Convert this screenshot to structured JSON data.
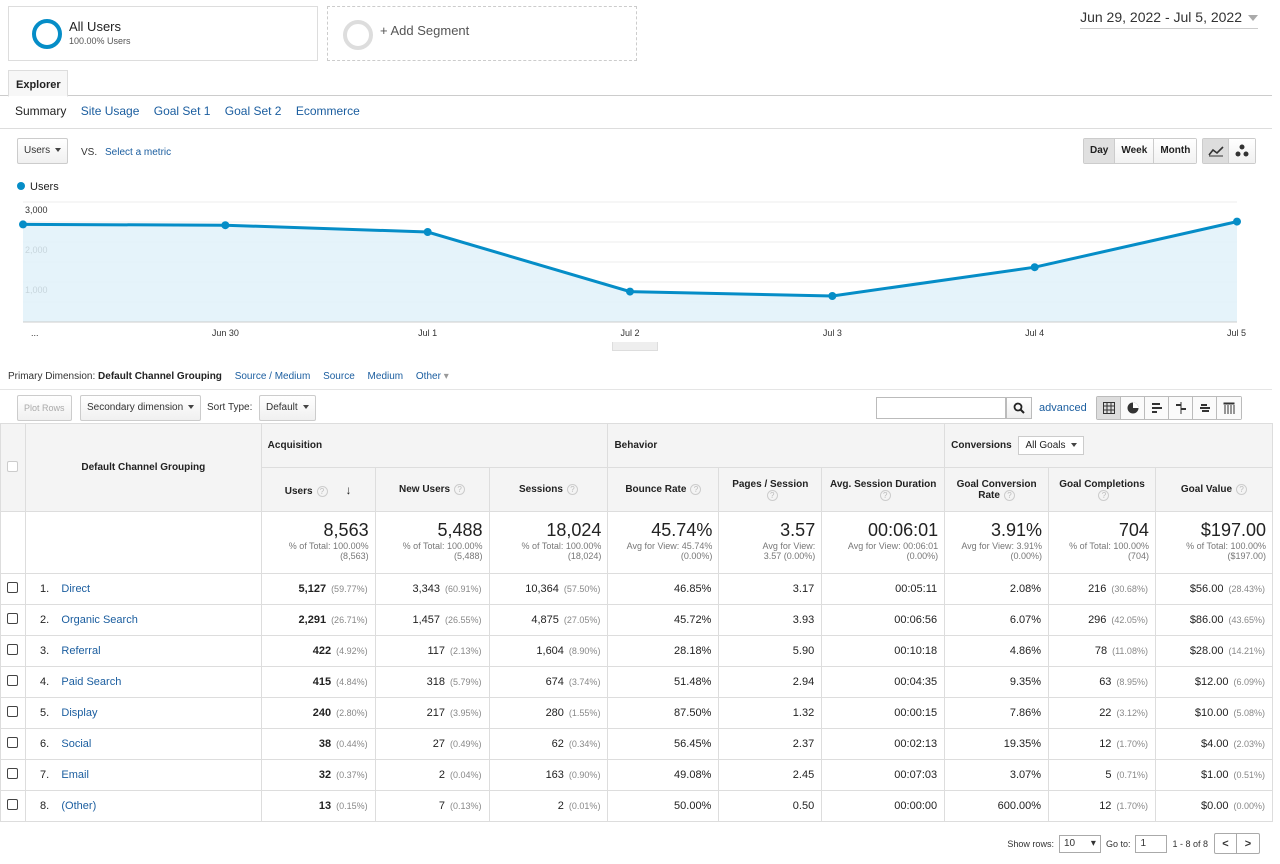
{
  "segments": {
    "primary": {
      "title": "All Users",
      "subtitle": "100.00% Users"
    },
    "add_label": "+ Add Segment"
  },
  "date_range": "Jun 29, 2022 - Jul 5, 2022",
  "tabs": {
    "explorer": "Explorer"
  },
  "subtabs": [
    "Summary",
    "Site Usage",
    "Goal Set 1",
    "Goal Set 2",
    "Ecommerce"
  ],
  "metric": {
    "selected": "Users",
    "vs": "VS.",
    "select_metric": "Select a metric"
  },
  "granularity": [
    "Day",
    "Week",
    "Month"
  ],
  "legend": "Users",
  "colors": {
    "accent": "#058dc7",
    "fill": "#e0f1f9",
    "link": "#1a5d9f"
  },
  "chart_data": {
    "type": "area",
    "series": [
      {
        "name": "Users",
        "values": [
          2440,
          2420,
          2250,
          760,
          650,
          1370,
          2510
        ]
      }
    ],
    "x": [
      "Jun 29",
      "Jun 30",
      "Jul 1",
      "Jul 2",
      "Jul 3",
      "Jul 4",
      "Jul 5"
    ],
    "x_tick_labels": [
      "...",
      "Jun 30",
      "Jul 1",
      "Jul 2",
      "Jul 3",
      "Jul 4",
      "Jul 5"
    ],
    "y_ticks": [
      "3,000",
      "2,000",
      "1,000"
    ],
    "ylim": [
      0,
      3000
    ],
    "grid": true
  },
  "primary_dimension": {
    "label": "Primary Dimension:",
    "selected": "Default Channel Grouping",
    "options": [
      "Source / Medium",
      "Source",
      "Medium",
      "Other"
    ]
  },
  "toolbar": {
    "plot_rows": "Plot Rows",
    "secondary_dimension": "Secondary dimension",
    "sort_type_label": "Sort Type:",
    "sort_type_value": "Default",
    "advanced": "advanced",
    "search_value": ""
  },
  "table": {
    "dimension_header": "Default Channel Grouping",
    "groups": {
      "acquisition": "Acquisition",
      "behavior": "Behavior",
      "conversions": "Conversions",
      "goals_select": "All Goals"
    },
    "columns": [
      "Users",
      "New Users",
      "Sessions",
      "Bounce Rate",
      "Pages / Session",
      "Avg. Session Duration",
      "Goal Conversion Rate",
      "Goal Completions",
      "Goal Value"
    ],
    "totals": [
      {
        "value": "8,563",
        "l1": "% of Total: 100.00%",
        "l2": "(8,563)"
      },
      {
        "value": "5,488",
        "l1": "% of Total: 100.00%",
        "l2": "(5,488)"
      },
      {
        "value": "18,024",
        "l1": "% of Total: 100.00%",
        "l2": "(18,024)"
      },
      {
        "value": "45.74%",
        "l1": "Avg for View: 45.74%",
        "l2": "(0.00%)"
      },
      {
        "value": "3.57",
        "l1": "Avg for View:",
        "l2": "3.57 (0.00%)"
      },
      {
        "value": "00:06:01",
        "l1": "Avg for View: 00:06:01",
        "l2": "(0.00%)"
      },
      {
        "value": "3.91%",
        "l1": "Avg for View: 3.91%",
        "l2": "(0.00%)"
      },
      {
        "value": "704",
        "l1": "% of Total: 100.00%",
        "l2": "(704)"
      },
      {
        "value": "$197.00",
        "l1": "% of Total: 100.00%",
        "l2": "($197.00)"
      }
    ],
    "rows": [
      {
        "idx": "1.",
        "name": "Direct",
        "users": "5,127",
        "users_pct": "(59.77%)",
        "new_users": "3,343",
        "new_users_pct": "(60.91%)",
        "sessions": "10,364",
        "sessions_pct": "(57.50%)",
        "bounce": "46.85%",
        "pps": "3.17",
        "dur": "00:05:11",
        "gcr": "2.08%",
        "gc": "216",
        "gc_pct": "(30.68%)",
        "gv": "$56.00",
        "gv_pct": "(28.43%)"
      },
      {
        "idx": "2.",
        "name": "Organic Search",
        "users": "2,291",
        "users_pct": "(26.71%)",
        "new_users": "1,457",
        "new_users_pct": "(26.55%)",
        "sessions": "4,875",
        "sessions_pct": "(27.05%)",
        "bounce": "45.72%",
        "pps": "3.93",
        "dur": "00:06:56",
        "gcr": "6.07%",
        "gc": "296",
        "gc_pct": "(42.05%)",
        "gv": "$86.00",
        "gv_pct": "(43.65%)"
      },
      {
        "idx": "3.",
        "name": "Referral",
        "users": "422",
        "users_pct": "(4.92%)",
        "new_users": "117",
        "new_users_pct": "(2.13%)",
        "sessions": "1,604",
        "sessions_pct": "(8.90%)",
        "bounce": "28.18%",
        "pps": "5.90",
        "dur": "00:10:18",
        "gcr": "4.86%",
        "gc": "78",
        "gc_pct": "(11.08%)",
        "gv": "$28.00",
        "gv_pct": "(14.21%)"
      },
      {
        "idx": "4.",
        "name": "Paid Search",
        "users": "415",
        "users_pct": "(4.84%)",
        "new_users": "318",
        "new_users_pct": "(5.79%)",
        "sessions": "674",
        "sessions_pct": "(3.74%)",
        "bounce": "51.48%",
        "pps": "2.94",
        "dur": "00:04:35",
        "gcr": "9.35%",
        "gc": "63",
        "gc_pct": "(8.95%)",
        "gv": "$12.00",
        "gv_pct": "(6.09%)"
      },
      {
        "idx": "5.",
        "name": "Display",
        "users": "240",
        "users_pct": "(2.80%)",
        "new_users": "217",
        "new_users_pct": "(3.95%)",
        "sessions": "280",
        "sessions_pct": "(1.55%)",
        "bounce": "87.50%",
        "pps": "1.32",
        "dur": "00:00:15",
        "gcr": "7.86%",
        "gc": "22",
        "gc_pct": "(3.12%)",
        "gv": "$10.00",
        "gv_pct": "(5.08%)"
      },
      {
        "idx": "6.",
        "name": "Social",
        "users": "38",
        "users_pct": "(0.44%)",
        "new_users": "27",
        "new_users_pct": "(0.49%)",
        "sessions": "62",
        "sessions_pct": "(0.34%)",
        "bounce": "56.45%",
        "pps": "2.37",
        "dur": "00:02:13",
        "gcr": "19.35%",
        "gc": "12",
        "gc_pct": "(1.70%)",
        "gv": "$4.00",
        "gv_pct": "(2.03%)"
      },
      {
        "idx": "7.",
        "name": "Email",
        "users": "32",
        "users_pct": "(0.37%)",
        "new_users": "2",
        "new_users_pct": "(0.04%)",
        "sessions": "163",
        "sessions_pct": "(0.90%)",
        "bounce": "49.08%",
        "pps": "2.45",
        "dur": "00:07:03",
        "gcr": "3.07%",
        "gc": "5",
        "gc_pct": "(0.71%)",
        "gv": "$1.00",
        "gv_pct": "(0.51%)"
      },
      {
        "idx": "8.",
        "name": "(Other)",
        "users": "13",
        "users_pct": "(0.15%)",
        "new_users": "7",
        "new_users_pct": "(0.13%)",
        "sessions": "2",
        "sessions_pct": "(0.01%)",
        "bounce": "50.00%",
        "pps": "0.50",
        "dur": "00:00:00",
        "gcr": "600.00%",
        "gc": "12",
        "gc_pct": "(1.70%)",
        "gv": "$0.00",
        "gv_pct": "(0.00%)"
      }
    ]
  },
  "pagination": {
    "show_rows_label": "Show rows:",
    "show_rows_value": "10",
    "goto_label": "Go to:",
    "goto_value": "1",
    "range": "1 - 8 of 8"
  }
}
